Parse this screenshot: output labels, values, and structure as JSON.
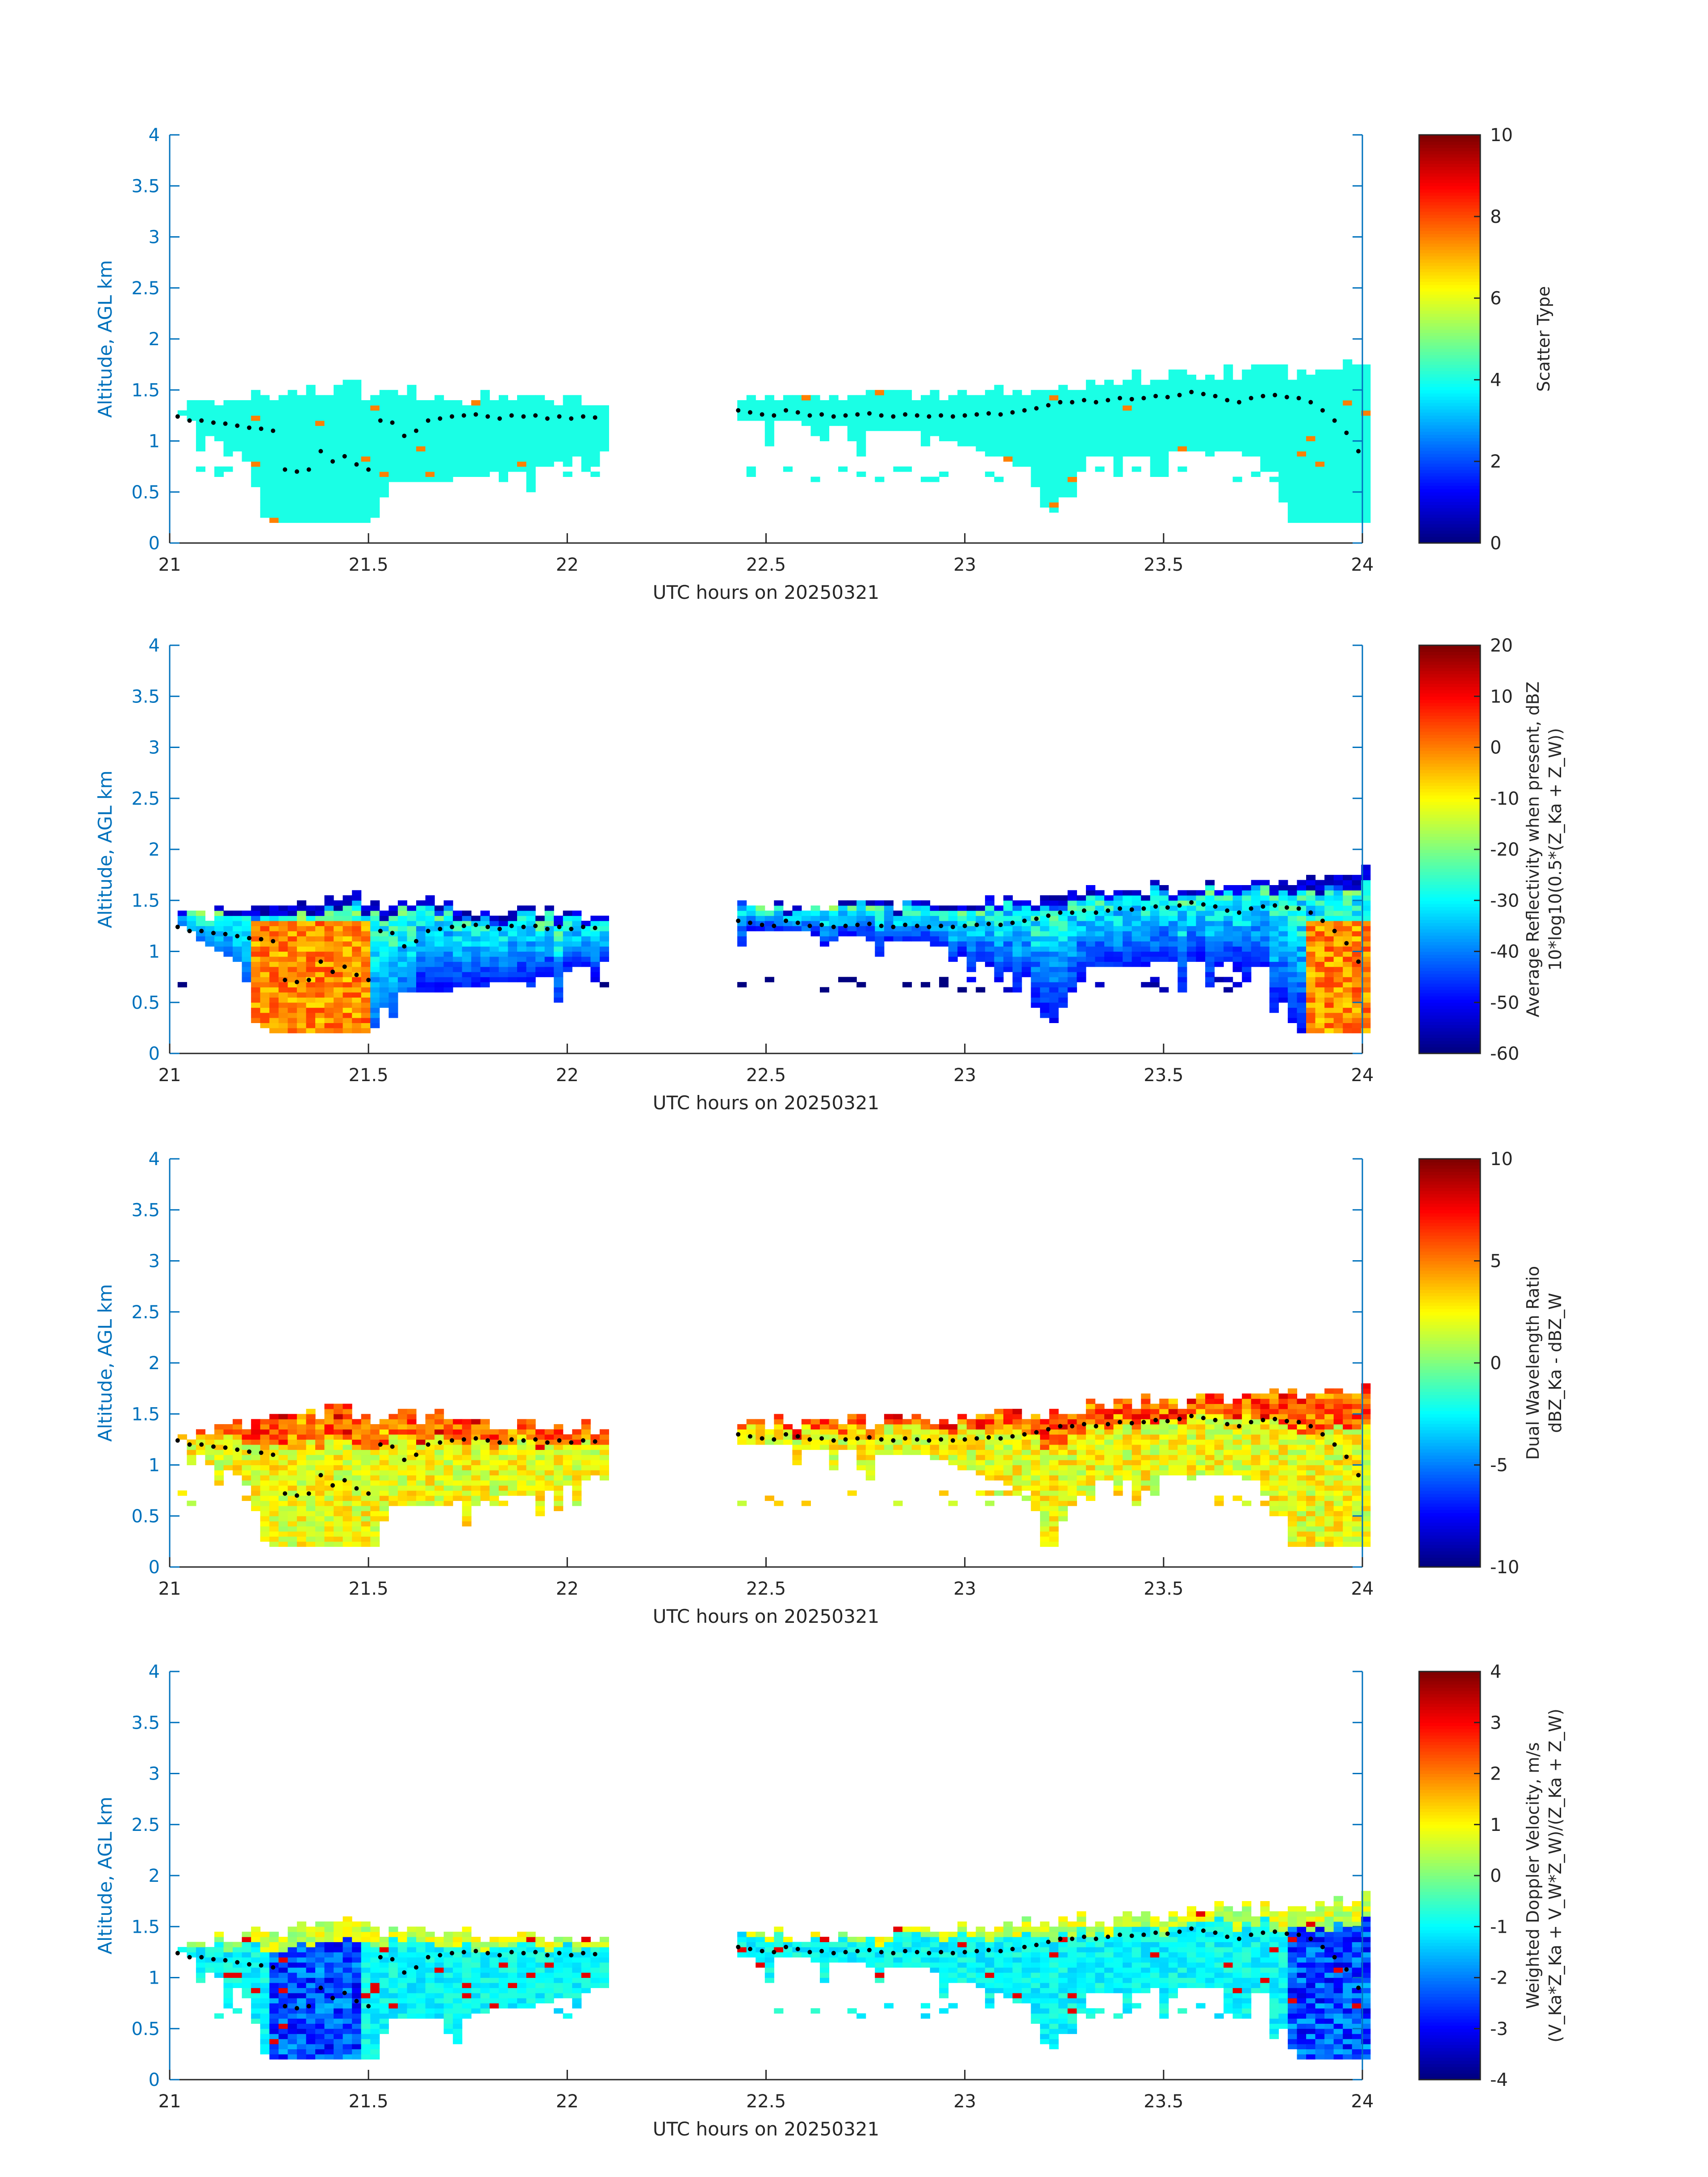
{
  "figure": {
    "x_axis_label": "UTC hours on 20250321",
    "y_axis_label": "Altitude, AGL km",
    "axis_color": "#0072BD",
    "point_color": "#000000",
    "background": "#ffffff"
  },
  "chart_data": [
    {
      "type": "heatmap",
      "xlabel": "UTC hours on 20250321",
      "ylabel": "Altitude, AGL km",
      "xlim": [
        21,
        24
      ],
      "ylim": [
        0,
        4
      ],
      "xticks": [
        "21",
        "21.5",
        "22",
        "22.5",
        "23",
        "23.5",
        "24"
      ],
      "yticks": [
        "0",
        "0.5",
        "1",
        "1.5",
        "2",
        "2.5",
        "3",
        "3.5",
        "4"
      ],
      "colorbar": {
        "label_lines": [
          "Scatter Type"
        ],
        "range": [
          0,
          10
        ],
        "ticks": [
          "0",
          "2",
          "4",
          "6",
          "8",
          "10"
        ],
        "colormap": "jet"
      },
      "dominant_value": 4,
      "field_description_words": "cloud layer approx 0.2-1.6 km from 21.02 to 22.1 h and 22.42 to 24 h; nearly uniform value 4 with sparse value ~7.5 pixels"
    },
    {
      "type": "heatmap",
      "xlabel": "UTC hours on 20250321",
      "ylabel": "Altitude, AGL km",
      "xlim": [
        21,
        24
      ],
      "ylim": [
        0,
        4
      ],
      "xticks": [
        "21",
        "21.5",
        "22",
        "22.5",
        "23",
        "23.5",
        "24"
      ],
      "yticks": [
        "0",
        "0.5",
        "1",
        "1.5",
        "2",
        "2.5",
        "3",
        "3.5",
        "4"
      ],
      "colorbar": {
        "label_lines": [
          "Average Reflectivity when present, dBZ",
          "10*log10(0.5*(Z_Ka + Z_W))"
        ],
        "range": [
          -60,
          20
        ],
        "ticks": [
          "-60",
          "-50",
          "-40",
          "-30",
          "-20",
          "-10",
          "0",
          "10",
          "20"
        ],
        "colormap": "jet"
      },
      "value_range_shown": [
        -60,
        10
      ]
    },
    {
      "type": "heatmap",
      "xlabel": "UTC hours on 20250321",
      "ylabel": "Altitude, AGL km",
      "xlim": [
        21,
        24
      ],
      "ylim": [
        0,
        4
      ],
      "xticks": [
        "21",
        "21.5",
        "22",
        "22.5",
        "23",
        "23.5",
        "24"
      ],
      "yticks": [
        "0",
        "0.5",
        "1",
        "1.5",
        "2",
        "2.5",
        "3",
        "3.5",
        "4"
      ],
      "colorbar": {
        "label_lines": [
          "Dual Wavelength Ratio",
          "dBZ_Ka - dBZ_W"
        ],
        "range": [
          -10,
          10
        ],
        "ticks": [
          "-10",
          "-5",
          "0",
          "5",
          "10"
        ],
        "colormap": "jet"
      },
      "value_range_shown": [
        0,
        8
      ]
    },
    {
      "type": "heatmap",
      "xlabel": "UTC hours on 20250321",
      "ylabel": "Altitude, AGL km",
      "xlim": [
        21,
        24
      ],
      "ylim": [
        0,
        4
      ],
      "xticks": [
        "21",
        "21.5",
        "22",
        "22.5",
        "23",
        "23.5",
        "24"
      ],
      "yticks": [
        "0",
        "0.5",
        "1",
        "1.5",
        "2",
        "2.5",
        "3",
        "3.5",
        "4"
      ],
      "colorbar": {
        "label_lines": [
          "Weighted Doppler Velocity, m/s",
          "(V_Ka*Z_Ka + V_W*Z_W)/(Z_Ka + Z_W)"
        ],
        "range": [
          -4,
          4
        ],
        "ticks": [
          "-4",
          "-3",
          "-2",
          "-1",
          "0",
          "1",
          "2",
          "3",
          "4"
        ],
        "colormap": "jet"
      },
      "value_range_shown": [
        -3.5,
        1.5
      ]
    }
  ],
  "cloud_base_points": {
    "x": [
      21.02,
      21.05,
      21.08,
      21.11,
      21.14,
      21.17,
      21.2,
      21.23,
      21.26,
      21.29,
      21.32,
      21.35,
      21.38,
      21.41,
      21.44,
      21.47,
      21.5,
      21.53,
      21.56,
      21.59,
      21.62,
      21.65,
      21.68,
      21.71,
      21.74,
      21.77,
      21.8,
      21.83,
      21.86,
      21.89,
      21.92,
      21.95,
      21.98,
      22.01,
      22.04,
      22.07,
      22.43,
      22.46,
      22.49,
      22.52,
      22.55,
      22.58,
      22.61,
      22.64,
      22.67,
      22.7,
      22.73,
      22.76,
      22.79,
      22.82,
      22.85,
      22.88,
      22.91,
      22.94,
      22.97,
      23.0,
      23.03,
      23.06,
      23.09,
      23.12,
      23.15,
      23.18,
      23.21,
      23.24,
      23.27,
      23.3,
      23.33,
      23.36,
      23.39,
      23.42,
      23.45,
      23.48,
      23.51,
      23.54,
      23.57,
      23.6,
      23.63,
      23.66,
      23.69,
      23.72,
      23.75,
      23.78,
      23.81,
      23.84,
      23.87,
      23.9,
      23.93,
      23.96,
      23.99
    ],
    "y": [
      1.24,
      1.2,
      1.2,
      1.18,
      1.17,
      1.15,
      1.13,
      1.12,
      1.1,
      0.72,
      0.7,
      0.72,
      0.9,
      0.8,
      0.85,
      0.77,
      0.72,
      1.2,
      1.18,
      1.05,
      1.1,
      1.2,
      1.22,
      1.24,
      1.25,
      1.26,
      1.24,
      1.22,
      1.25,
      1.24,
      1.25,
      1.22,
      1.24,
      1.22,
      1.24,
      1.23,
      1.3,
      1.28,
      1.26,
      1.25,
      1.3,
      1.28,
      1.25,
      1.26,
      1.24,
      1.25,
      1.26,
      1.27,
      1.25,
      1.24,
      1.26,
      1.25,
      1.24,
      1.25,
      1.24,
      1.25,
      1.26,
      1.27,
      1.26,
      1.28,
      1.3,
      1.32,
      1.35,
      1.38,
      1.38,
      1.4,
      1.38,
      1.4,
      1.42,
      1.41,
      1.42,
      1.44,
      1.43,
      1.45,
      1.48,
      1.46,
      1.44,
      1.4,
      1.38,
      1.42,
      1.44,
      1.45,
      1.43,
      1.42,
      1.38,
      1.3,
      1.2,
      1.08,
      0.9
    ]
  }
}
